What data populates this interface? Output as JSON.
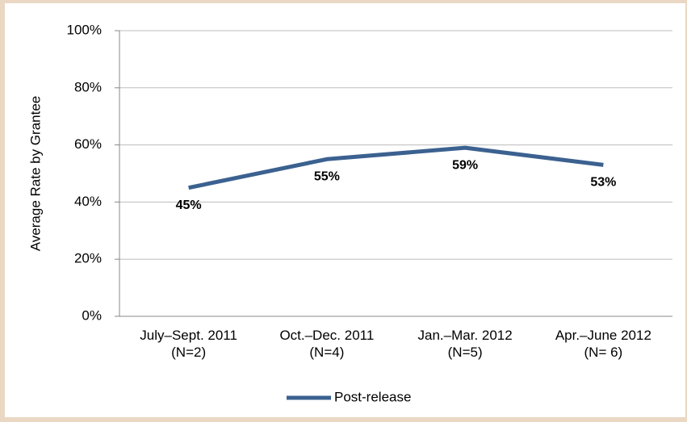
{
  "chart_data": {
    "type": "line",
    "y_label": "Average Rate by Grantee",
    "categories": [
      "July–Sept. 2011\n(N=2)",
      "Oct.–Dec. 2011\n(N=4)",
      "Jan.–Mar. 2012\n(N=5)",
      "Apr.–June 2012\n(N= 6)"
    ],
    "series": [
      {
        "name": "Post-release",
        "color": "#3b6190",
        "values": [
          45,
          55,
          59,
          53
        ],
        "value_labels": [
          "45%",
          "55%",
          "59%",
          "53%"
        ]
      }
    ],
    "ylim": [
      0,
      100
    ],
    "yticks": [
      {
        "value": 0,
        "label": "0%"
      },
      {
        "value": 20,
        "label": "20%"
      },
      {
        "value": 40,
        "label": "40%"
      },
      {
        "value": 60,
        "label": "60%"
      },
      {
        "value": 80,
        "label": "80%"
      },
      {
        "value": 100,
        "label": "100%"
      }
    ],
    "grid": true,
    "legend": "bottom"
  }
}
